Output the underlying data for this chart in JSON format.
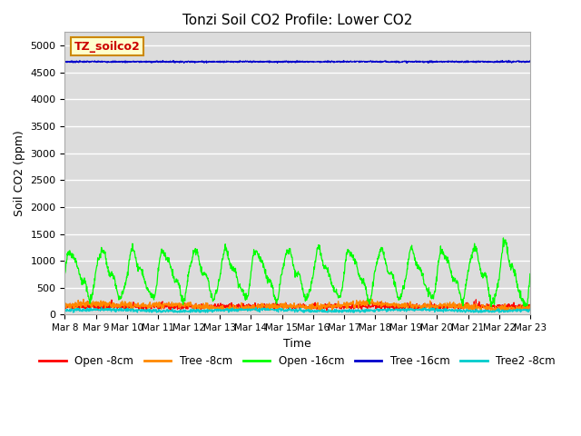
{
  "title": "Tonzi Soil CO2 Profile: Lower CO2",
  "xlabel": "Time",
  "ylabel": "Soil CO2 (ppm)",
  "legend_label": "TZ_soilco2",
  "ylim": [
    0,
    5250
  ],
  "yticks": [
    0,
    500,
    1000,
    1500,
    2000,
    2500,
    3000,
    3500,
    4000,
    4500,
    5000
  ],
  "tree16_value": 4700,
  "tree16_noise": 8,
  "open8_base": 150,
  "open8_noise": 25,
  "tree8_base": 160,
  "tree8_noise": 30,
  "tree2_8_base": 80,
  "tree2_8_noise": 15,
  "colors": {
    "open8": "#ff0000",
    "tree8": "#ff8800",
    "open16": "#00ff00",
    "tree16": "#0000cc",
    "tree2_8": "#00cccc"
  },
  "bg_color": "#dcdcdc",
  "grid_color": "#ffffff",
  "fig_bg": "#ffffff",
  "xtick_labels": [
    "Mar 8",
    "Mar 9",
    "Mar 10",
    "Mar 11",
    "Mar 12",
    "Mar 13",
    "Mar 14",
    "Mar 15",
    "Mar 16",
    "Mar 17",
    "Mar 18",
    "Mar 19",
    "Mar 20",
    "Mar 21",
    "Mar 22",
    "Mar 23"
  ],
  "linewidth": 0.9
}
